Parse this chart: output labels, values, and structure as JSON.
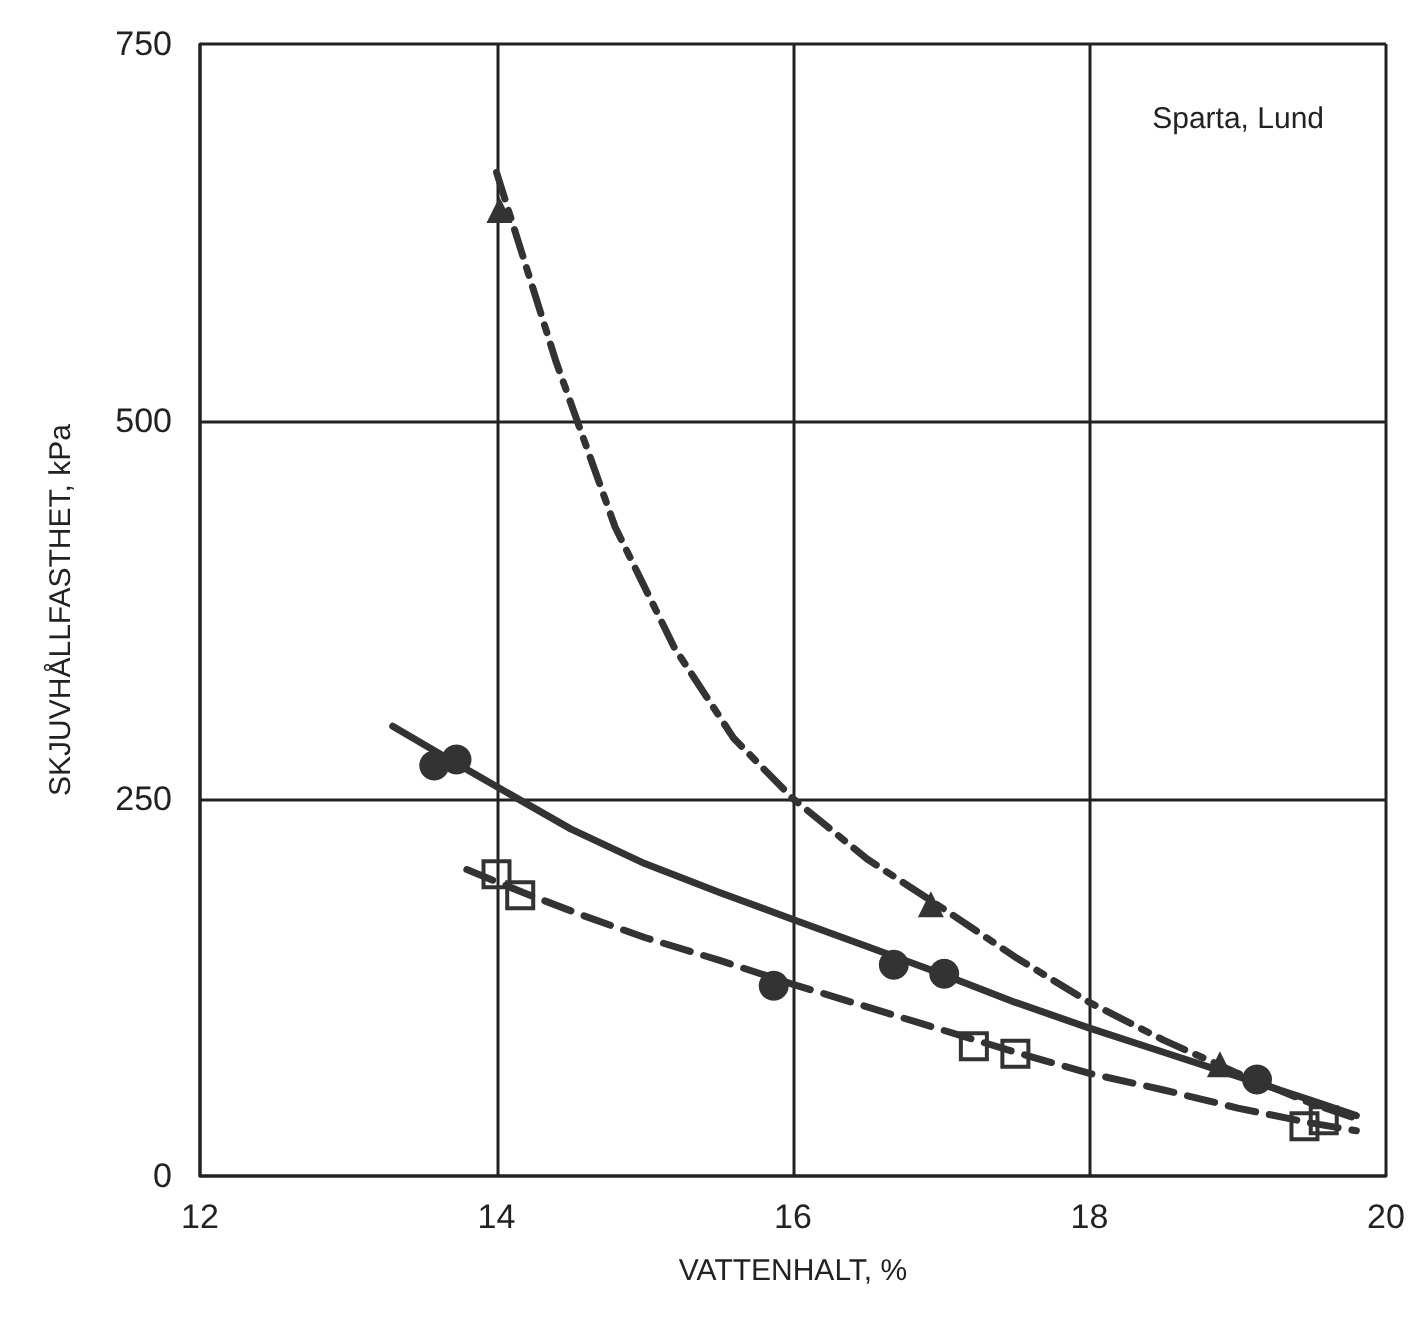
{
  "chart_data": {
    "type": "line",
    "xlabel": "VATTENHALT, %",
    "ylabel": "SKJUVHÅLLFASTHET, kPa",
    "annotations": [
      "Sparta, Lund"
    ],
    "xlim": [
      12,
      20
    ],
    "xticks": [
      12,
      14,
      16,
      18,
      20
    ],
    "ylim": [
      0,
      750
    ],
    "yticks": [
      0,
      250,
      500,
      750
    ],
    "grid": true,
    "series": [
      {
        "color": "#333333",
        "line_style": "dashdot",
        "marker": "none",
        "x": [
          14.0,
          14.4,
          14.8,
          15.2,
          15.6,
          16.0,
          16.5,
          17.0,
          17.5,
          18.0,
          18.5,
          19.0,
          19.5,
          19.8
        ],
        "values": [
          665,
          540,
          430,
          350,
          290,
          250,
          210,
          178,
          145,
          115,
          90,
          68,
          48,
          38
        ]
      },
      {
        "color": "#333333",
        "line_style": "solid",
        "marker": "none",
        "x": [
          13.3,
          13.7,
          14.0,
          14.5,
          15.0,
          15.5,
          16.0,
          16.5,
          17.0,
          17.5,
          18.0,
          18.5,
          19.0,
          19.5,
          19.8
        ],
        "values": [
          298,
          275,
          258,
          230,
          207,
          188,
          170,
          152,
          134,
          115,
          98,
          82,
          66,
          50,
          40
        ]
      },
      {
        "color": "#333333",
        "line_style": "dashed",
        "marker": "none",
        "x": [
          13.8,
          14.2,
          14.6,
          15.0,
          15.5,
          16.0,
          16.5,
          17.0,
          17.5,
          18.0,
          18.5,
          19.0,
          19.5,
          19.8
        ],
        "values": [
          203,
          187,
          172,
          158,
          143,
          127,
          112,
          97,
          82,
          68,
          57,
          45,
          35,
          30
        ]
      },
      {
        "type": "scatter",
        "color": "#333333",
        "marker": "triangle",
        "x": [
          14.02,
          16.93,
          18.88
        ],
        "values": [
          640,
          180,
          74
        ]
      },
      {
        "type": "scatter",
        "color": "#333333",
        "marker": "circle",
        "x": [
          13.58,
          13.73,
          15.87,
          16.68,
          17.02,
          19.13
        ],
        "values": [
          272,
          276,
          126,
          140,
          134,
          64
        ]
      },
      {
        "type": "scatter",
        "color": "#333333",
        "marker": "square",
        "x": [
          14.0,
          14.16,
          17.22,
          17.5,
          19.45,
          19.58
        ],
        "values": [
          200,
          186,
          86,
          81,
          33,
          37
        ]
      }
    ]
  }
}
